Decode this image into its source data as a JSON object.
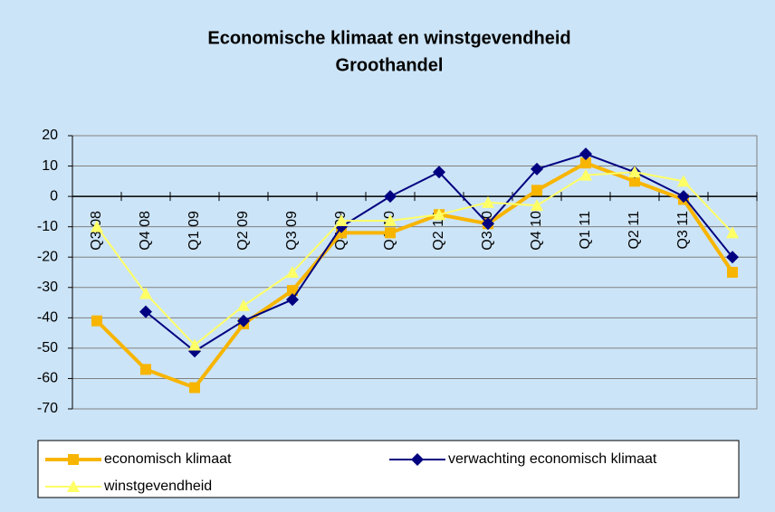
{
  "chart_data": {
    "type": "line",
    "title": "Economische klimaat en winstgevendheid",
    "subtitle": "Groothandel",
    "categories": [
      "Q3 08",
      "Q4 08",
      "Q1 09",
      "Q2 09",
      "Q3 09",
      "Q4 09",
      "Q1 10",
      "Q2 10",
      "Q3 10",
      "Q4 10",
      "Q1 11",
      "Q2 11",
      "Q3 11",
      null
    ],
    "series": [
      {
        "name": "economisch klimaat",
        "color": "#f7b500",
        "marker": "square",
        "values": [
          -41,
          -57,
          -63,
          -42,
          -31,
          -12,
          -12,
          -6,
          -9,
          2,
          11,
          5,
          -1,
          -25
        ]
      },
      {
        "name": "verwachting economisch klimaat",
        "color": "#000080",
        "marker": "diamond",
        "values": [
          null,
          -38,
          -51,
          -41,
          -34,
          -10,
          0,
          8,
          -9,
          9,
          14,
          8,
          0,
          -20
        ]
      },
      {
        "name": "winstgevendheid",
        "color": "#ffff66",
        "marker": "triangle",
        "values": [
          -10,
          -32,
          -49,
          -36,
          -25,
          -8,
          -8,
          -6,
          -2,
          -3,
          7,
          8,
          5,
          -12
        ]
      }
    ],
    "ylim": [
      -70,
      20
    ],
    "yticks": [
      -70,
      -60,
      -50,
      -40,
      -30,
      -20,
      -10,
      0,
      10,
      20
    ],
    "grid": true,
    "legend": "bottom"
  }
}
